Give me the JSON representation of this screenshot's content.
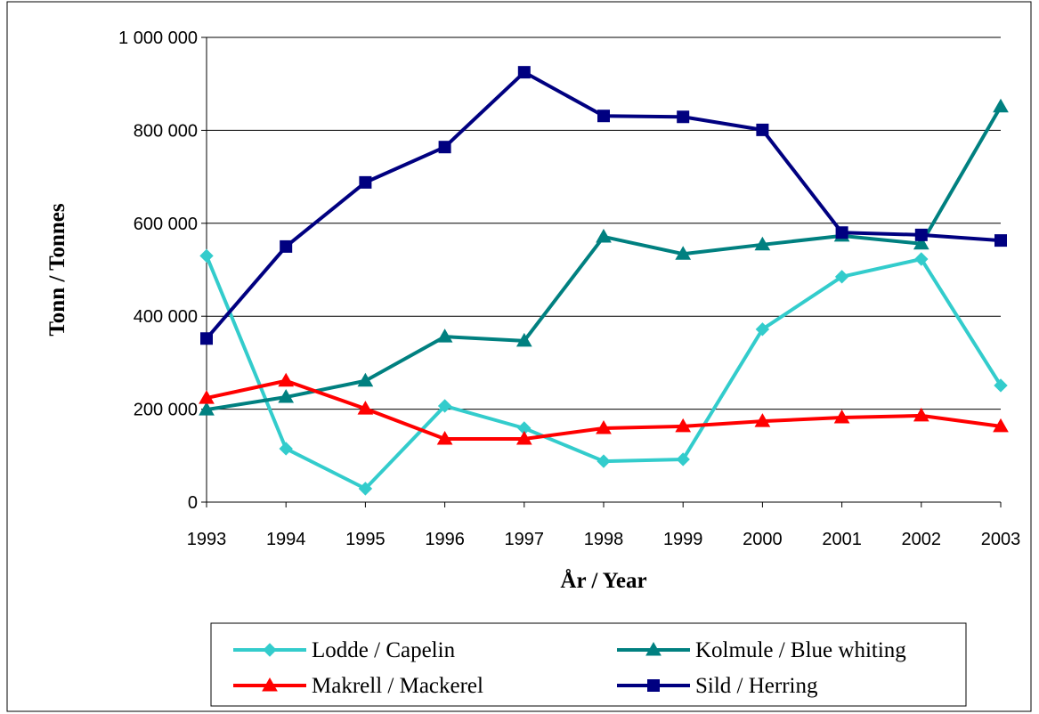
{
  "chart_data": {
    "type": "line",
    "x_label": "År / Year",
    "y_label": "Tonn / Tonnes",
    "categories": [
      "1993",
      "1994",
      "1995",
      "1996",
      "1997",
      "1998",
      "1999",
      "2000",
      "2001",
      "2002",
      "2003"
    ],
    "series": [
      {
        "name": "Lodde / Capelin",
        "color": "#33cccc",
        "marker": "diamond",
        "values": [
          530000,
          115000,
          29000,
          207000,
          159000,
          88000,
          92000,
          372000,
          485000,
          523000,
          251000
        ]
      },
      {
        "name": "Kolmule / Blue whiting",
        "color": "#008080",
        "marker": "triangle",
        "values": [
          199000,
          226000,
          261000,
          356000,
          347000,
          571000,
          534000,
          554000,
          573000,
          556000,
          851000
        ]
      },
      {
        "name": "Makrell / Mackerel",
        "color": "#ff0000",
        "marker": "triangle",
        "values": [
          224000,
          261000,
          201000,
          136000,
          136000,
          159000,
          163000,
          174000,
          182000,
          186000,
          163000
        ]
      },
      {
        "name": "Sild / Herring",
        "color": "#000080",
        "marker": "square",
        "values": [
          352000,
          550000,
          688000,
          764000,
          925000,
          831000,
          829000,
          801000,
          580000,
          575000,
          563000
        ]
      }
    ],
    "ylim": [
      0,
      1000000
    ],
    "yticks": [
      0,
      {
        "value": 200000,
        "label": "200 000"
      },
      {
        "value": 400000,
        "label": "400 000"
      },
      {
        "value": 600000,
        "label": "600 000"
      },
      {
        "value": 800000,
        "label": "800 000"
      },
      {
        "value": 1000000,
        "label": "1 000 000"
      }
    ],
    "grid": true,
    "legend": "bottom"
  }
}
